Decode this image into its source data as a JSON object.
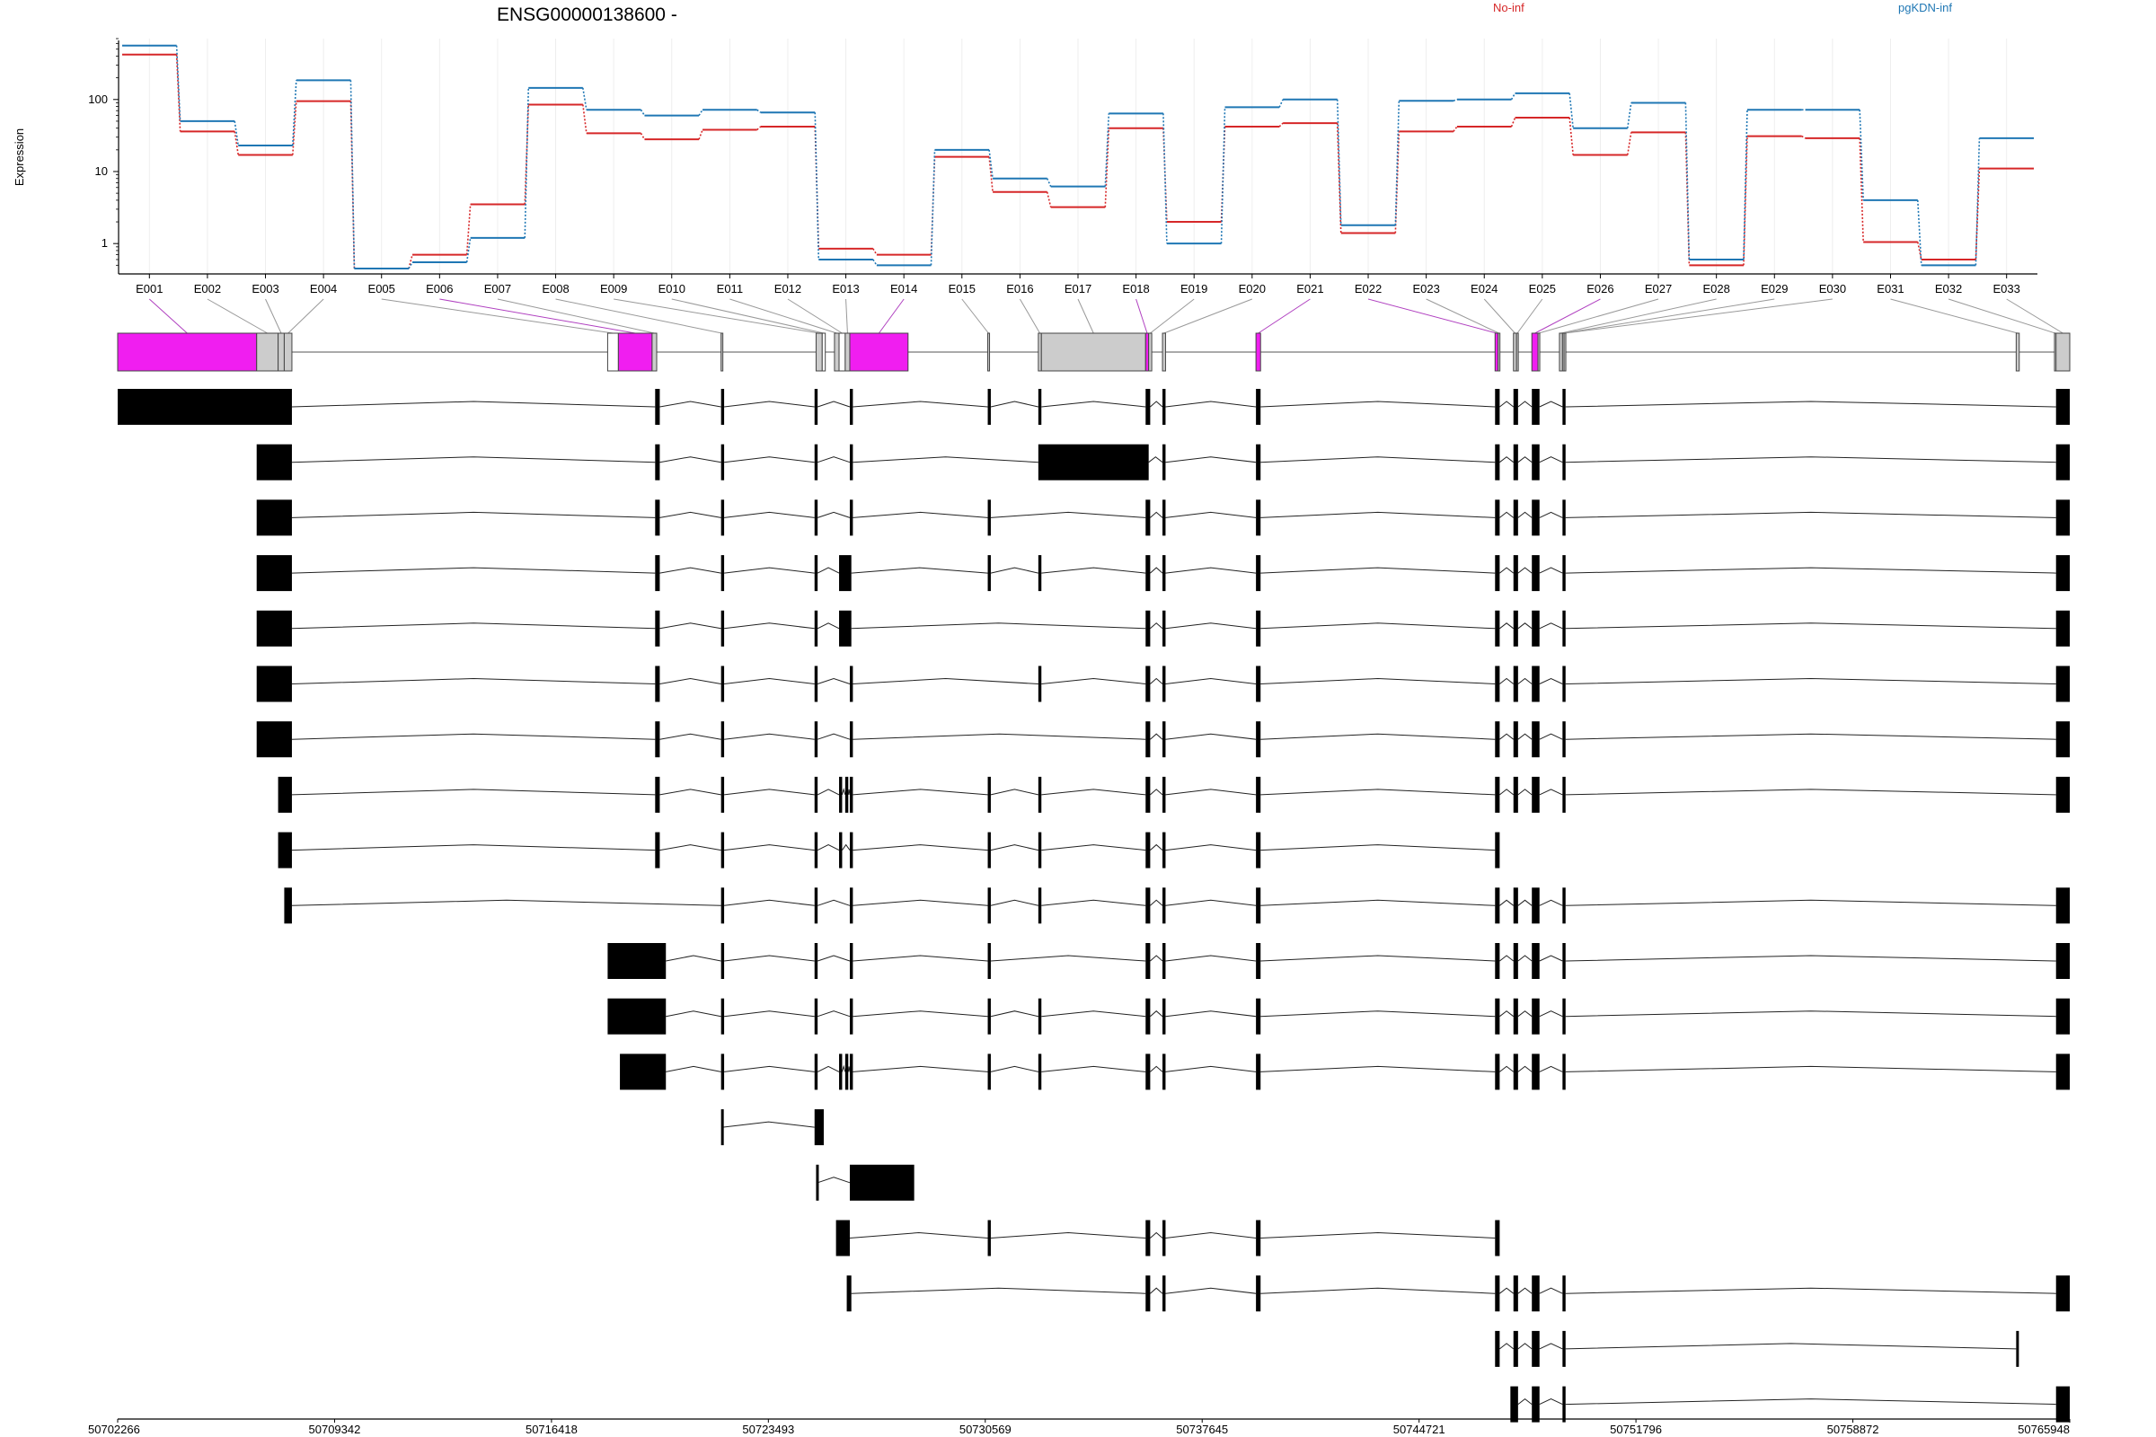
{
  "chart_data": {
    "type": "line",
    "title": "ENSG00000138600 -",
    "ylabel": "Expression",
    "y_scale": "log",
    "y_ticks": [
      "1",
      "10",
      "100"
    ],
    "ylim": [
      0.45,
      700
    ],
    "grid": "vertical, light",
    "legend_placement": "top-right",
    "colors": {
      "no_inf": "#d62728",
      "pgkdn_inf": "#1f77b4",
      "highlight_exon": "#f01ef0",
      "grey_exon": "#cccccc",
      "black": "#000000"
    },
    "x_labels": [
      "E001",
      "E002",
      "E003",
      "E004",
      "E005",
      "E006",
      "E007",
      "E008",
      "E009",
      "E010",
      "E011",
      "E012",
      "E013",
      "E014",
      "E015",
      "E016",
      "E017",
      "E018",
      "E019",
      "E020",
      "E021",
      "E022",
      "E023",
      "E024",
      "E025",
      "E026",
      "E027",
      "E028",
      "E029",
      "E030",
      "E031",
      "E032",
      "E033"
    ],
    "series": [
      {
        "name": "No-inf",
        "color": "#d62728",
        "values": [
          420,
          36,
          17,
          95,
          0.45,
          0.7,
          3.5,
          85,
          34,
          28,
          38,
          42,
          0.85,
          0.7,
          16,
          5.2,
          3.2,
          40,
          2,
          42,
          47,
          1.4,
          36,
          42,
          56,
          17,
          35,
          0.5,
          31,
          29,
          1.05,
          0.6,
          11
        ]
      },
      {
        "name": "pgKDN-inf",
        "color": "#1f77b4",
        "values": [
          560,
          50,
          23,
          185,
          0.45,
          0.55,
          1.2,
          145,
          72,
          60,
          72,
          66,
          0.6,
          0.5,
          20,
          8,
          6.2,
          64,
          1,
          78,
          100,
          1.8,
          96,
          100,
          122,
          40,
          90,
          0.6,
          72,
          72,
          4,
          0.5,
          29
        ]
      }
    ],
    "genomic_ticks": [
      "50702266",
      "50709342",
      "50716418",
      "50723493",
      "50730569",
      "50737645",
      "50744721",
      "50751796",
      "50758872",
      "50765948"
    ],
    "genomic_range": [
      50702266,
      50765948
    ],
    "exon_model": [
      {
        "id": "E001",
        "start": 50702266,
        "end": 50706800,
        "color": "magenta"
      },
      {
        "id": "E002",
        "start": 50706800,
        "end": 50707500,
        "color": "grey"
      },
      {
        "id": "E003",
        "start": 50707500,
        "end": 50707700,
        "color": "grey"
      },
      {
        "id": "E004",
        "start": 50707700,
        "end": 50707950,
        "color": "grey"
      },
      {
        "id": "E005",
        "start": 50718250,
        "end": 50718600,
        "color": "white"
      },
      {
        "id": "E006",
        "start": 50718600,
        "end": 50719700,
        "color": "magenta"
      },
      {
        "id": "E007",
        "start": 50719700,
        "end": 50719850,
        "color": "grey"
      },
      {
        "id": "E008",
        "start": 50721950,
        "end": 50722000,
        "color": "grey"
      },
      {
        "id": "E009",
        "start": 50725050,
        "end": 50725250,
        "color": "grey"
      },
      {
        "id": "E010",
        "start": 50725250,
        "end": 50725350,
        "color": "white"
      },
      {
        "id": "E011",
        "start": 50725650,
        "end": 50725800,
        "color": "grey"
      },
      {
        "id": "E012",
        "start": 50725800,
        "end": 50726000,
        "color": "white"
      },
      {
        "id": "E013",
        "start": 50726000,
        "end": 50726150,
        "color": "grey"
      },
      {
        "id": "E014",
        "start": 50726150,
        "end": 50728050,
        "color": "magenta"
      },
      {
        "id": "E015",
        "start": 50730650,
        "end": 50730700,
        "color": "grey"
      },
      {
        "id": "E016",
        "start": 50732300,
        "end": 50732400,
        "color": "grey"
      },
      {
        "id": "E017",
        "start": 50732400,
        "end": 50735800,
        "color": "grey"
      },
      {
        "id": "E018",
        "start": 50735800,
        "end": 50735900,
        "color": "magenta"
      },
      {
        "id": "E019",
        "start": 50735900,
        "end": 50736000,
        "color": "grey"
      },
      {
        "id": "E020",
        "start": 50736350,
        "end": 50736450,
        "color": "grey"
      },
      {
        "id": "E021",
        "start": 50739400,
        "end": 50739550,
        "color": "magenta"
      },
      {
        "id": "E022",
        "start": 50747200,
        "end": 50747300,
        "color": "magenta"
      },
      {
        "id": "E023",
        "start": 50747300,
        "end": 50747350,
        "color": "grey"
      },
      {
        "id": "E024",
        "start": 50747800,
        "end": 50747900,
        "color": "grey"
      },
      {
        "id": "E025",
        "start": 50747900,
        "end": 50747950,
        "color": "grey"
      },
      {
        "id": "E026",
        "start": 50748400,
        "end": 50748600,
        "color": "magenta"
      },
      {
        "id": "E027",
        "start": 50748600,
        "end": 50748650,
        "color": "grey"
      },
      {
        "id": "E028",
        "start": 50749300,
        "end": 50749400,
        "color": "grey"
      },
      {
        "id": "E029",
        "start": 50749400,
        "end": 50749450,
        "color": "grey"
      },
      {
        "id": "E030",
        "start": 50749450,
        "end": 50749500,
        "color": "grey"
      },
      {
        "id": "E031",
        "start": 50764200,
        "end": 50764300,
        "color": "grey"
      },
      {
        "id": "E032",
        "start": 50765450,
        "end": 50765500,
        "color": "grey"
      },
      {
        "id": "E033",
        "start": 50765500,
        "end": 50765948,
        "color": "grey"
      }
    ],
    "transcripts": [
      [
        [
          50702266,
          50707950
        ],
        [
          50719800,
          50719950
        ],
        [
          50721950,
          50722050
        ],
        [
          50725000,
          50725100
        ],
        [
          50726150,
          50726250
        ],
        [
          50730650,
          50730750
        ],
        [
          50732300,
          50732400
        ],
        [
          50735800,
          50735950
        ],
        [
          50736350,
          50736450
        ],
        [
          50739400,
          50739550
        ],
        [
          50747200,
          50747350
        ],
        [
          50747800,
          50747950
        ],
        [
          50748400,
          50748650
        ],
        [
          50749400,
          50749500
        ],
        [
          50765500,
          50765948
        ]
      ],
      [
        [
          50706800,
          50707950
        ],
        [
          50719800,
          50719950
        ],
        [
          50721950,
          50722050
        ],
        [
          50725000,
          50725100
        ],
        [
          50726150,
          50726250
        ],
        [
          50732300,
          50735900
        ],
        [
          50736350,
          50736450
        ],
        [
          50739400,
          50739550
        ],
        [
          50747200,
          50747350
        ],
        [
          50747800,
          50747950
        ],
        [
          50748400,
          50748650
        ],
        [
          50749400,
          50749500
        ],
        [
          50765500,
          50765948
        ]
      ],
      [
        [
          50706800,
          50707950
        ],
        [
          50719800,
          50719950
        ],
        [
          50721950,
          50722050
        ],
        [
          50725000,
          50725100
        ],
        [
          50726150,
          50726250
        ],
        [
          50730650,
          50730750
        ],
        [
          50735800,
          50735950
        ],
        [
          50736350,
          50736450
        ],
        [
          50739400,
          50739550
        ],
        [
          50747200,
          50747350
        ],
        [
          50747800,
          50747950
        ],
        [
          50748400,
          50748650
        ],
        [
          50749400,
          50749500
        ],
        [
          50765500,
          50765948
        ]
      ],
      [
        [
          50706800,
          50707950
        ],
        [
          50719800,
          50719950
        ],
        [
          50721950,
          50722050
        ],
        [
          50725000,
          50725100
        ],
        [
          50725800,
          50726200
        ],
        [
          50730650,
          50730750
        ],
        [
          50732300,
          50732400
        ],
        [
          50735800,
          50735950
        ],
        [
          50736350,
          50736450
        ],
        [
          50739400,
          50739550
        ],
        [
          50747200,
          50747350
        ],
        [
          50747800,
          50747950
        ],
        [
          50748400,
          50748650
        ],
        [
          50749400,
          50749500
        ],
        [
          50765500,
          50765948
        ]
      ],
      [
        [
          50706800,
          50707950
        ],
        [
          50719800,
          50719950
        ],
        [
          50721950,
          50722050
        ],
        [
          50725000,
          50725100
        ],
        [
          50725800,
          50726200
        ],
        [
          50735800,
          50735950
        ],
        [
          50736350,
          50736450
        ],
        [
          50739400,
          50739550
        ],
        [
          50747200,
          50747350
        ],
        [
          50747800,
          50747950
        ],
        [
          50748400,
          50748650
        ],
        [
          50749400,
          50749500
        ],
        [
          50765500,
          50765948
        ]
      ],
      [
        [
          50706800,
          50707950
        ],
        [
          50719800,
          50719950
        ],
        [
          50721950,
          50722050
        ],
        [
          50725000,
          50725100
        ],
        [
          50726150,
          50726250
        ],
        [
          50732300,
          50732400
        ],
        [
          50735800,
          50735950
        ],
        [
          50736350,
          50736450
        ],
        [
          50739400,
          50739550
        ],
        [
          50747200,
          50747350
        ],
        [
          50747800,
          50747950
        ],
        [
          50748400,
          50748650
        ],
        [
          50749400,
          50749500
        ],
        [
          50765500,
          50765948
        ]
      ],
      [
        [
          50706800,
          50707950
        ],
        [
          50719800,
          50719950
        ],
        [
          50721950,
          50722050
        ],
        [
          50725000,
          50725100
        ],
        [
          50726150,
          50726250
        ],
        [
          50735800,
          50735950
        ],
        [
          50736350,
          50736450
        ],
        [
          50739400,
          50739550
        ],
        [
          50747200,
          50747350
        ],
        [
          50747800,
          50747950
        ],
        [
          50748400,
          50748650
        ],
        [
          50749400,
          50749500
        ],
        [
          50765500,
          50765948
        ]
      ],
      [
        [
          50707500,
          50707950
        ],
        [
          50719800,
          50719950
        ],
        [
          50721950,
          50722050
        ],
        [
          50725000,
          50725100
        ],
        [
          50725800,
          50725900
        ],
        [
          50726000,
          50726100
        ],
        [
          50726150,
          50726250
        ],
        [
          50730650,
          50730750
        ],
        [
          50732300,
          50732400
        ],
        [
          50735800,
          50735950
        ],
        [
          50736350,
          50736450
        ],
        [
          50739400,
          50739550
        ],
        [
          50747200,
          50747350
        ],
        [
          50747800,
          50747950
        ],
        [
          50748400,
          50748650
        ],
        [
          50749400,
          50749500
        ],
        [
          50765500,
          50765948
        ]
      ],
      [
        [
          50707500,
          50707950
        ],
        [
          50719800,
          50719950
        ],
        [
          50721950,
          50722050
        ],
        [
          50725000,
          50725100
        ],
        [
          50725800,
          50725900
        ],
        [
          50726150,
          50726250
        ],
        [
          50730650,
          50730750
        ],
        [
          50732300,
          50732400
        ],
        [
          50735800,
          50735950
        ],
        [
          50736350,
          50736450
        ],
        [
          50739400,
          50739550
        ],
        [
          50747200,
          50747350
        ]
      ],
      [
        [
          50707700,
          50707950
        ],
        [
          50721950,
          50722050
        ],
        [
          50725000,
          50725100
        ],
        [
          50726150,
          50726250
        ],
        [
          50730650,
          50730750
        ],
        [
          50732300,
          50732400
        ],
        [
          50735800,
          50735950
        ],
        [
          50736350,
          50736450
        ],
        [
          50739400,
          50739550
        ],
        [
          50747200,
          50747350
        ],
        [
          50747800,
          50747950
        ],
        [
          50748400,
          50748650
        ],
        [
          50749400,
          50749500
        ],
        [
          50765500,
          50765948
        ]
      ],
      [
        [
          50718250,
          50720150
        ],
        [
          50721950,
          50722050
        ],
        [
          50725000,
          50725100
        ],
        [
          50726150,
          50726250
        ],
        [
          50730650,
          50730750
        ],
        [
          50735800,
          50735950
        ],
        [
          50736350,
          50736450
        ],
        [
          50739400,
          50739550
        ],
        [
          50747200,
          50747350
        ],
        [
          50747800,
          50747950
        ],
        [
          50748400,
          50748650
        ],
        [
          50749400,
          50749500
        ],
        [
          50765500,
          50765948
        ]
      ],
      [
        [
          50718250,
          50720150
        ],
        [
          50721950,
          50722050
        ],
        [
          50725000,
          50725100
        ],
        [
          50726150,
          50726250
        ],
        [
          50730650,
          50730750
        ],
        [
          50732300,
          50732400
        ],
        [
          50735800,
          50735950
        ],
        [
          50736350,
          50736450
        ],
        [
          50739400,
          50739550
        ],
        [
          50747200,
          50747350
        ],
        [
          50747800,
          50747950
        ],
        [
          50748400,
          50748650
        ],
        [
          50749400,
          50749500
        ],
        [
          50765500,
          50765948
        ]
      ],
      [
        [
          50718650,
          50720150
        ],
        [
          50721950,
          50722050
        ],
        [
          50725000,
          50725100
        ],
        [
          50725800,
          50725900
        ],
        [
          50726000,
          50726100
        ],
        [
          50726150,
          50726250
        ],
        [
          50730650,
          50730750
        ],
        [
          50732300,
          50732400
        ],
        [
          50735800,
          50735950
        ],
        [
          50736350,
          50736450
        ],
        [
          50739400,
          50739550
        ],
        [
          50747200,
          50747350
        ],
        [
          50747800,
          50747950
        ],
        [
          50748400,
          50748650
        ],
        [
          50749400,
          50749500
        ],
        [
          50765500,
          50765948
        ]
      ],
      [
        [
          50721950,
          50722000
        ],
        [
          50725000,
          50725300
        ]
      ],
      [
        [
          50725050,
          50725100
        ],
        [
          50726150,
          50728250
        ]
      ],
      [
        [
          50725700,
          50726150
        ],
        [
          50730650,
          50730750
        ],
        [
          50735800,
          50735950
        ],
        [
          50736350,
          50736450
        ],
        [
          50739400,
          50739550
        ],
        [
          50747200,
          50747350
        ]
      ],
      [
        [
          50726050,
          50726200
        ],
        [
          50735800,
          50735950
        ],
        [
          50736350,
          50736450
        ],
        [
          50739400,
          50739550
        ],
        [
          50747200,
          50747350
        ],
        [
          50747800,
          50747950
        ],
        [
          50748400,
          50748650
        ],
        [
          50749400,
          50749500
        ],
        [
          50765500,
          50765948
        ]
      ],
      [
        [
          50747200,
          50747350
        ],
        [
          50747800,
          50747950
        ],
        [
          50748400,
          50748650
        ],
        [
          50749400,
          50749500
        ],
        [
          50764200,
          50764250
        ]
      ],
      [
        [
          50747700,
          50747950
        ],
        [
          50748400,
          50748650
        ],
        [
          50749400,
          50749500
        ],
        [
          50765500,
          50765948
        ]
      ]
    ]
  }
}
